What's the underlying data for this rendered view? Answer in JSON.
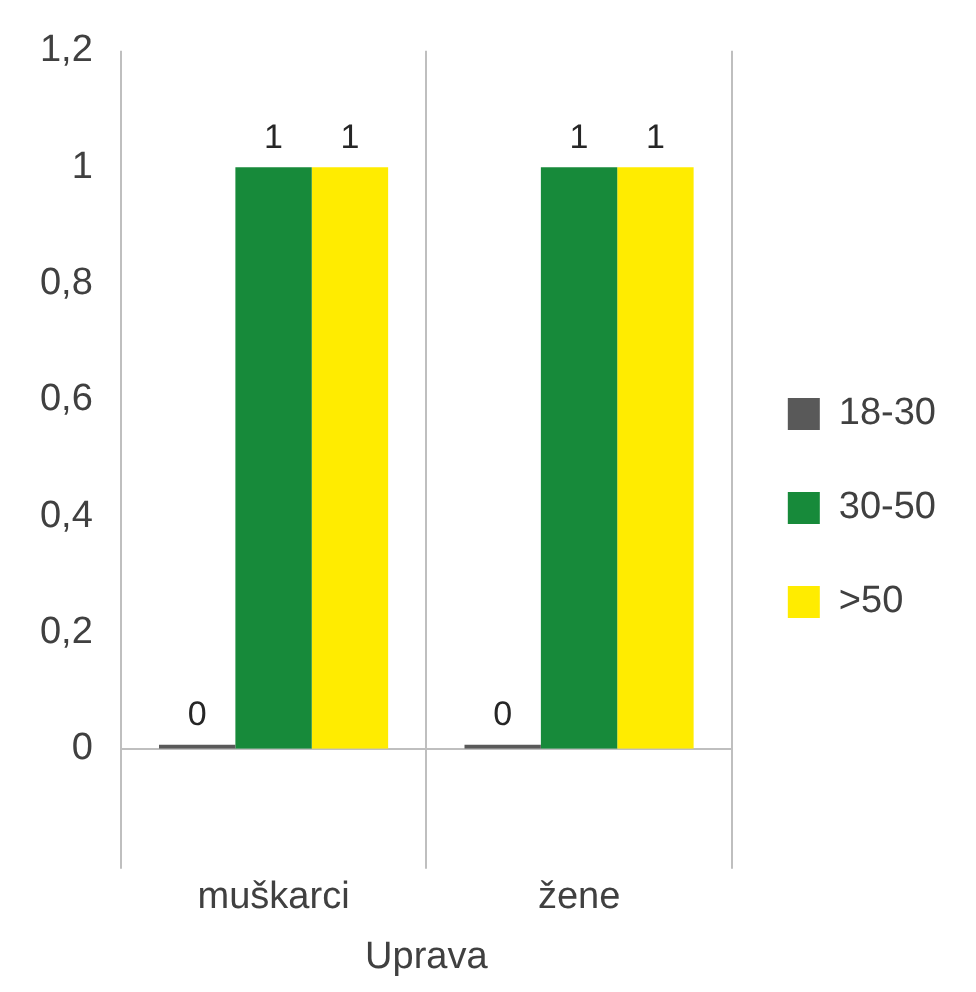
{
  "chart_data": {
    "type": "bar",
    "xlabel": "Uprava",
    "categories": [
      "muškarci",
      "žene"
    ],
    "series": [
      {
        "name": "18-30",
        "color": "#595959",
        "values": [
          0,
          0
        ]
      },
      {
        "name": "30-50",
        "color": "#178a3a",
        "values": [
          1,
          1
        ]
      },
      {
        "name": ">50",
        "color": "#ffec00",
        "values": [
          1,
          1
        ]
      }
    ],
    "ylim": [
      0,
      1.2
    ],
    "yticks": [
      {
        "value": 0,
        "label": "0"
      },
      {
        "value": 0.2,
        "label": "0,2"
      },
      {
        "value": 0.4,
        "label": "0,4"
      },
      {
        "value": 0.6,
        "label": "0,6"
      },
      {
        "value": 0.8,
        "label": "0,8"
      },
      {
        "value": 1,
        "label": "1"
      },
      {
        "value": 1.2,
        "label": "1,2"
      }
    ],
    "grid": "x",
    "legend": "right",
    "data_labels": true
  }
}
